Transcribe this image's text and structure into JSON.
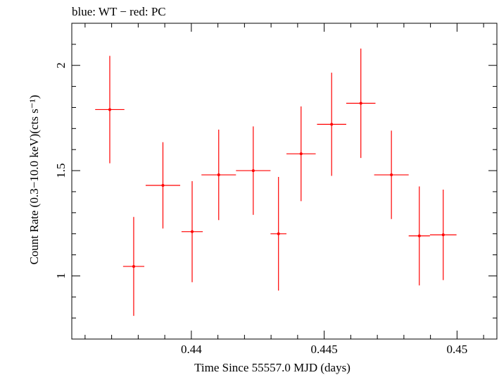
{
  "chart_data": {
    "type": "scatter",
    "title": "blue: WT − red: PC",
    "xlabel": "Time Since 55557.0 MJD (days)",
    "ylabel": "Count Rate (0.3−10.0 keV)(cts s⁻¹)",
    "xlim": [
      0.4355,
      0.4515
    ],
    "ylim": [
      0.7,
      2.2
    ],
    "xticks": [
      {
        "value": 0.44,
        "label": "0.44"
      },
      {
        "value": 0.445,
        "label": "0.445"
      },
      {
        "value": 0.45,
        "label": "0.45"
      }
    ],
    "yticks": [
      {
        "value": 1.0,
        "label": "1"
      },
      {
        "value": 1.5,
        "label": "1.5"
      },
      {
        "value": 2.0,
        "label": "2"
      }
    ],
    "series": [
      {
        "name": "PC",
        "color": "#ff0000",
        "points": [
          {
            "x": 0.43693,
            "xerr": 0.00055,
            "y": 1.79,
            "yerr_lo": 0.255,
            "yerr_hi": 0.255
          },
          {
            "x": 0.43783,
            "xerr": 0.0004,
            "y": 1.045,
            "yerr_lo": 0.235,
            "yerr_hi": 0.235
          },
          {
            "x": 0.43893,
            "xerr": 0.00065,
            "y": 1.43,
            "yerr_lo": 0.205,
            "yerr_hi": 0.205
          },
          {
            "x": 0.44003,
            "xerr": 0.0004,
            "y": 1.21,
            "yerr_lo": 0.24,
            "yerr_hi": 0.24
          },
          {
            "x": 0.44103,
            "xerr": 0.00065,
            "y": 1.48,
            "yerr_lo": 0.215,
            "yerr_hi": 0.215
          },
          {
            "x": 0.44233,
            "xerr": 0.00065,
            "y": 1.5,
            "yerr_lo": 0.21,
            "yerr_hi": 0.21
          },
          {
            "x": 0.44328,
            "xerr": 0.0003,
            "y": 1.2,
            "yerr_lo": 0.27,
            "yerr_hi": 0.27
          },
          {
            "x": 0.44413,
            "xerr": 0.00055,
            "y": 1.58,
            "yerr_lo": 0.225,
            "yerr_hi": 0.225
          },
          {
            "x": 0.44528,
            "xerr": 0.00055,
            "y": 1.72,
            "yerr_lo": 0.245,
            "yerr_hi": 0.245
          },
          {
            "x": 0.44638,
            "xerr": 0.00055,
            "y": 1.82,
            "yerr_lo": 0.26,
            "yerr_hi": 0.26
          },
          {
            "x": 0.44753,
            "xerr": 0.00065,
            "y": 1.48,
            "yerr_lo": 0.21,
            "yerr_hi": 0.21
          },
          {
            "x": 0.44858,
            "xerr": 0.0004,
            "y": 1.19,
            "yerr_lo": 0.235,
            "yerr_hi": 0.235
          },
          {
            "x": 0.44948,
            "xerr": 0.0005,
            "y": 1.195,
            "yerr_lo": 0.215,
            "yerr_hi": 0.215
          }
        ]
      }
    ]
  }
}
